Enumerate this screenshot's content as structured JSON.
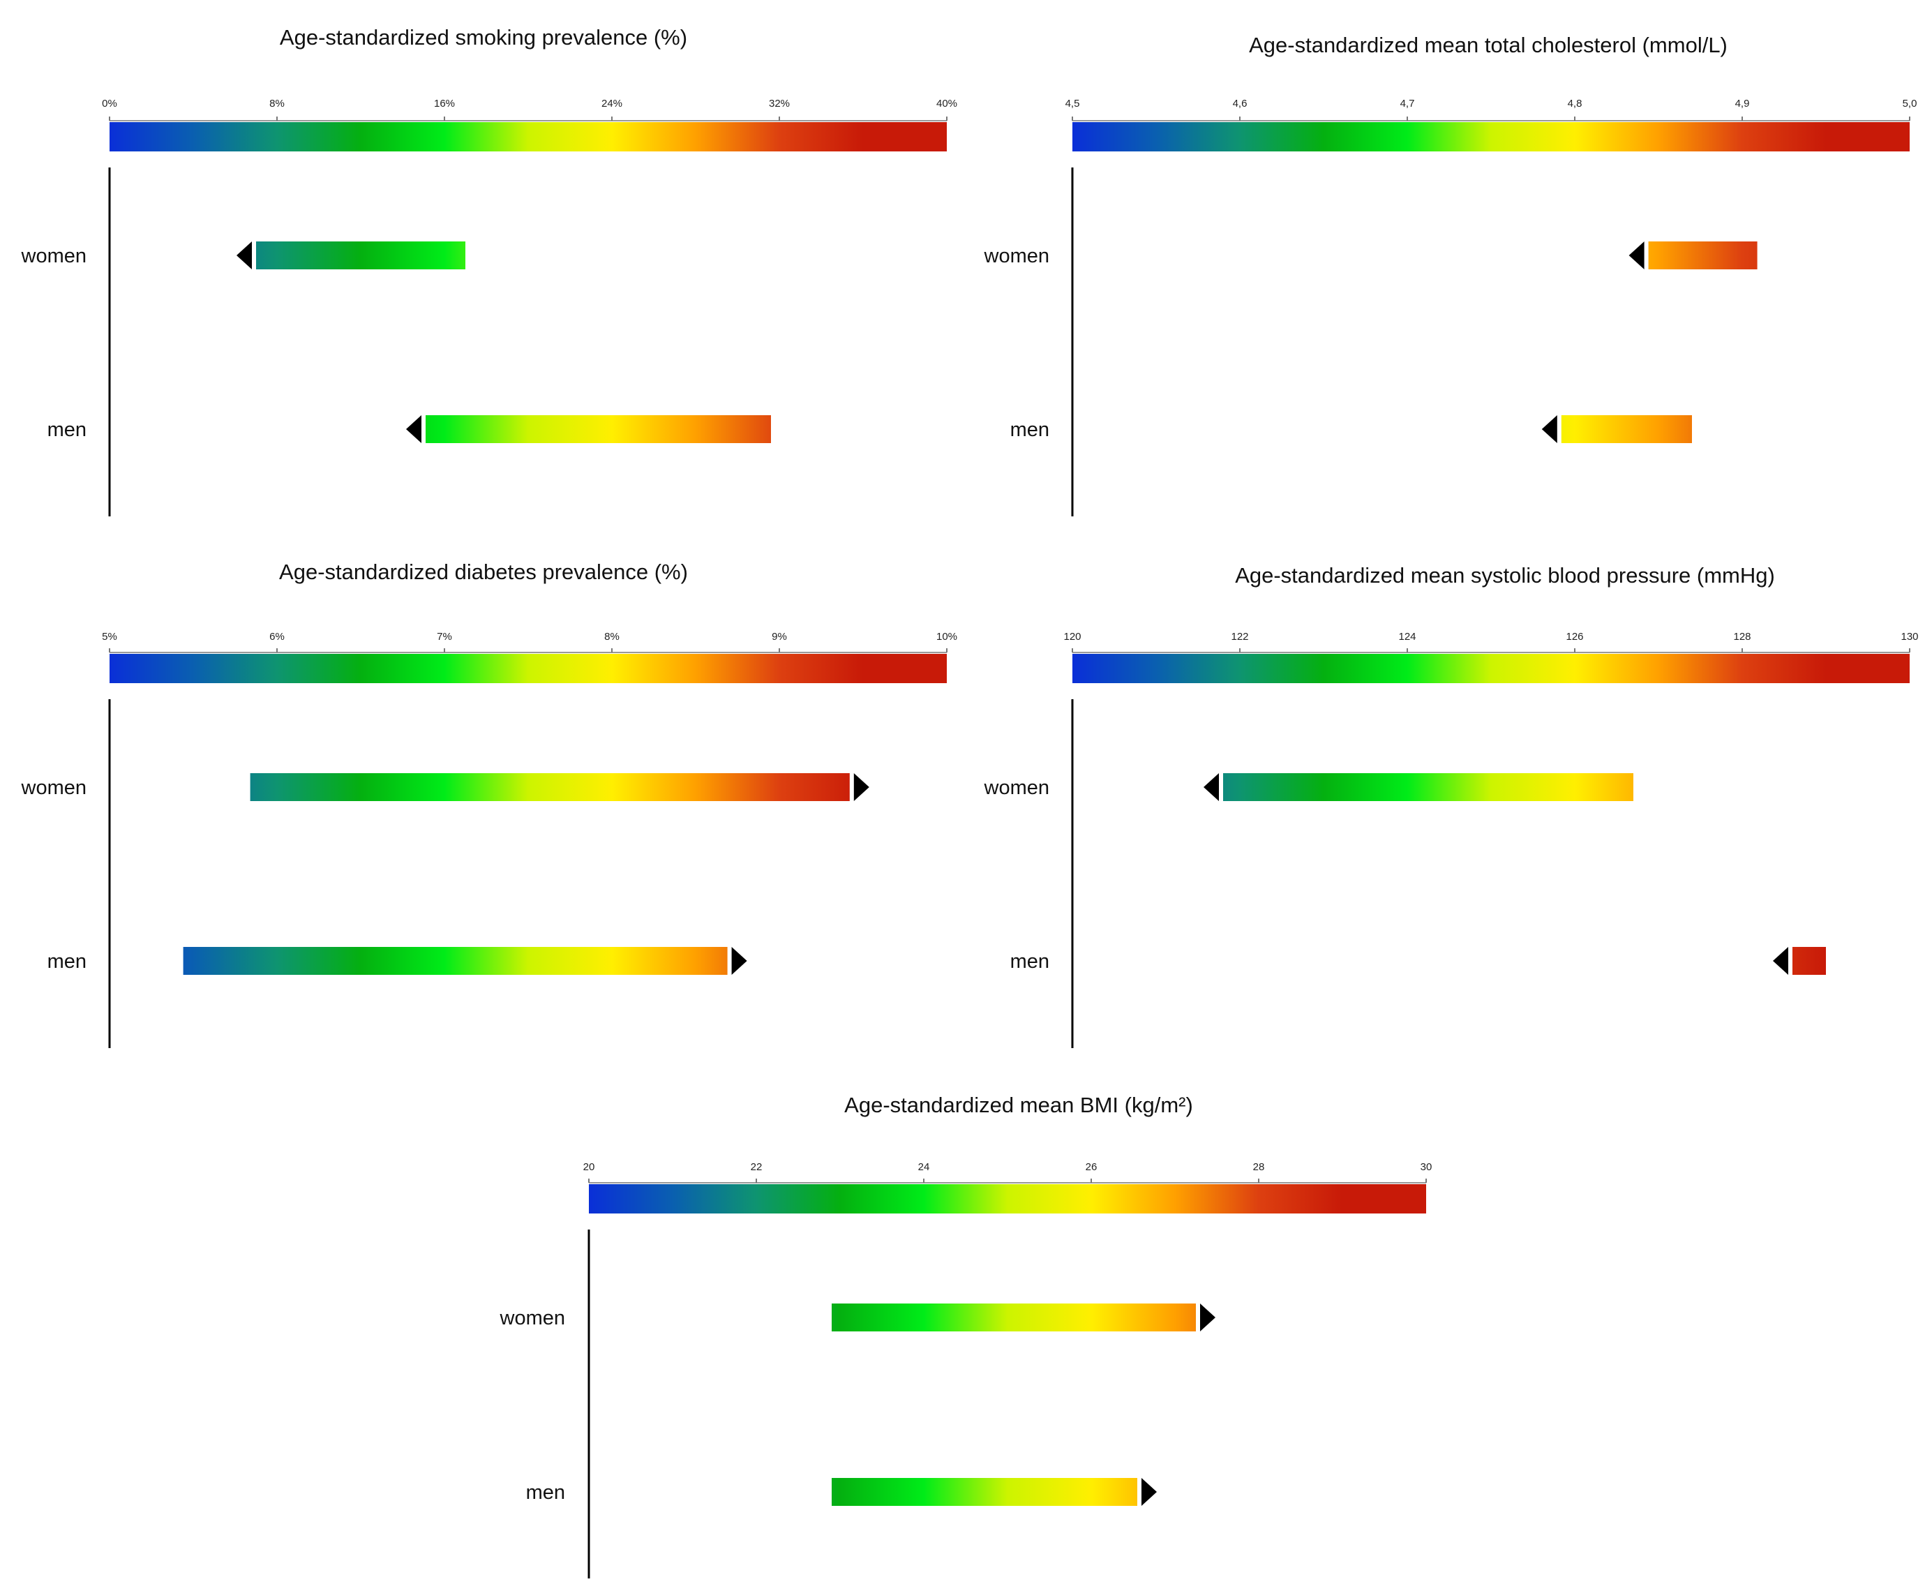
{
  "colors": {
    "scale": [
      "#0a2fd8",
      "#0a5fb0",
      "#0e9470",
      "#04b010",
      "#00ec18",
      "#ccf400",
      "#ffef00",
      "#ffa000",
      "#dd4010",
      "#c81a08",
      "#c81a08"
    ],
    "arrow": "#000000",
    "axis": "#000000"
  },
  "chart_data": [
    {
      "type": "range-bar",
      "title": "Age-standardized smoking prevalence (%)",
      "ticks": [
        "0%",
        "8%",
        "16%",
        "24%",
        "32%",
        "40%"
      ],
      "tick_values": [
        0,
        8,
        16,
        24,
        32,
        40
      ],
      "range": [
        0,
        40
      ],
      "rows": [
        {
          "label": "women",
          "start": 7.0,
          "end": 17.0,
          "direction": "decrease"
        },
        {
          "label": "men",
          "start": 15.1,
          "end": 31.6,
          "direction": "decrease"
        }
      ]
    },
    {
      "type": "range-bar",
      "title": "Age-standardized mean total cholesterol (mmol/L)",
      "ticks": [
        "4,5",
        "4,6",
        "4,7",
        "4,8",
        "4,9",
        "5,0"
      ],
      "tick_values": [
        4.5,
        4.6,
        4.7,
        4.8,
        4.9,
        5.0
      ],
      "range": [
        4.5,
        5.0
      ],
      "rows": [
        {
          "label": "women",
          "start": 4.844,
          "end": 4.909,
          "direction": "decrease"
        },
        {
          "label": "men",
          "start": 4.792,
          "end": 4.87,
          "direction": "decrease"
        }
      ]
    },
    {
      "type": "range-bar",
      "title": "Age-standardized diabetes prevalence (%)",
      "ticks": [
        "5%",
        "6%",
        "7%",
        "8%",
        "9%",
        "10%"
      ],
      "tick_values": [
        5,
        6,
        7,
        8,
        9,
        10
      ],
      "range": [
        5,
        10
      ],
      "rows": [
        {
          "label": "women",
          "start": 5.84,
          "end": 9.42,
          "direction": "increase"
        },
        {
          "label": "men",
          "start": 5.44,
          "end": 8.69,
          "direction": "increase"
        }
      ]
    },
    {
      "type": "range-bar",
      "title": "Age-standardized mean systolic blood pressure (mmHg)",
      "ticks": [
        "120",
        "122",
        "124",
        "126",
        "128",
        "130"
      ],
      "tick_values": [
        120,
        122,
        124,
        126,
        128,
        130
      ],
      "range": [
        120,
        130
      ],
      "rows": [
        {
          "label": "women",
          "start": 121.8,
          "end": 126.7,
          "direction": "decrease"
        },
        {
          "label": "men",
          "start": 128.6,
          "end": 129.0,
          "direction": "decrease"
        }
      ]
    },
    {
      "type": "range-bar",
      "title": "Age-standardized mean BMI (kg/m²)",
      "ticks": [
        "20",
        "22",
        "24",
        "26",
        "28",
        "30"
      ],
      "tick_values": [
        20,
        22,
        24,
        26,
        28,
        30
      ],
      "range": [
        20,
        30
      ],
      "rows": [
        {
          "label": "women",
          "start": 22.9,
          "end": 27.25,
          "direction": "increase"
        },
        {
          "label": "men",
          "start": 22.9,
          "end": 26.55,
          "direction": "increase"
        }
      ]
    }
  ]
}
